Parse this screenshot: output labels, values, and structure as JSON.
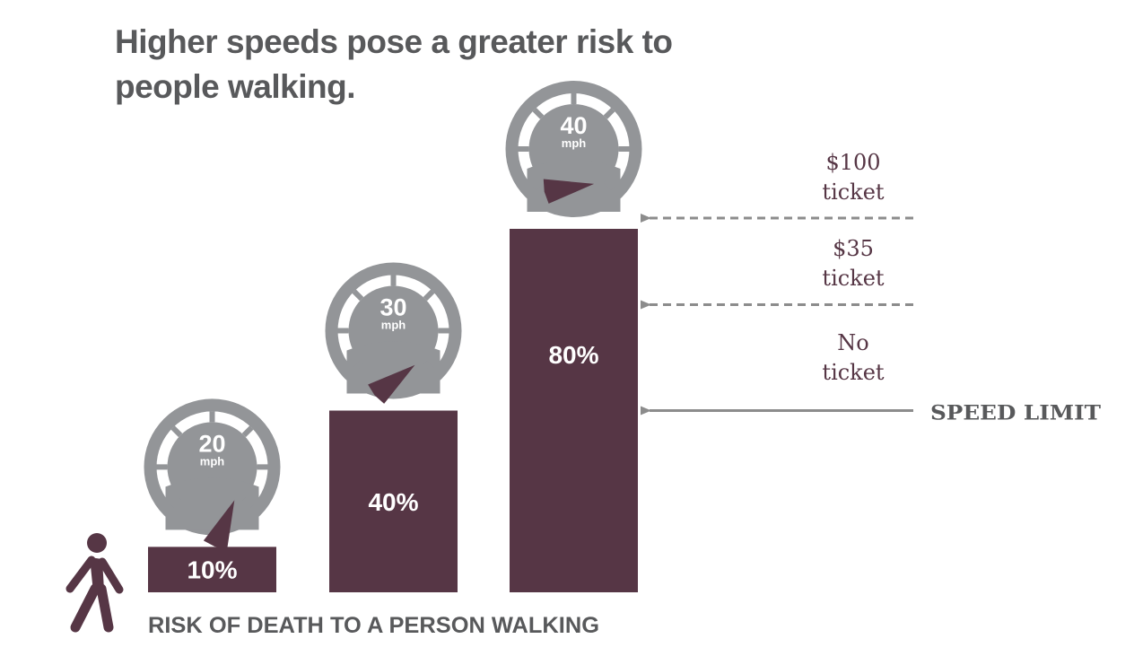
{
  "title_lines": [
    "Higher speeds pose a greater risk to",
    "people walking."
  ],
  "chart_data": {
    "type": "bar",
    "title": "Higher speeds pose a greater risk to people walking.",
    "xlabel": "RISK OF DEATH TO A PERSON WALKING",
    "categories": [
      "20 mph",
      "30 mph",
      "40 mph"
    ],
    "values": [
      10,
      40,
      80
    ],
    "value_labels": [
      "10%",
      "40%",
      "80%"
    ],
    "ylim": [
      0,
      80
    ],
    "grid": false,
    "legend": "none",
    "gauges": [
      {
        "speed": "20",
        "unit": "mph"
      },
      {
        "speed": "30",
        "unit": "mph"
      },
      {
        "speed": "40",
        "unit": "mph"
      }
    ],
    "annotations": {
      "speed_limit": "SPEED LIMIT",
      "tiers": [
        {
          "line1": "No",
          "line2": "ticket"
        },
        {
          "line1": "$35",
          "line2": "ticket"
        },
        {
          "line1": "$100",
          "line2": "ticket"
        }
      ]
    }
  },
  "colors": {
    "bar": "#563645",
    "gauge": "#939598",
    "title": "#58595b",
    "arrow": "#8c8c8c",
    "tier_text": "#563645",
    "needle": "#563645"
  }
}
